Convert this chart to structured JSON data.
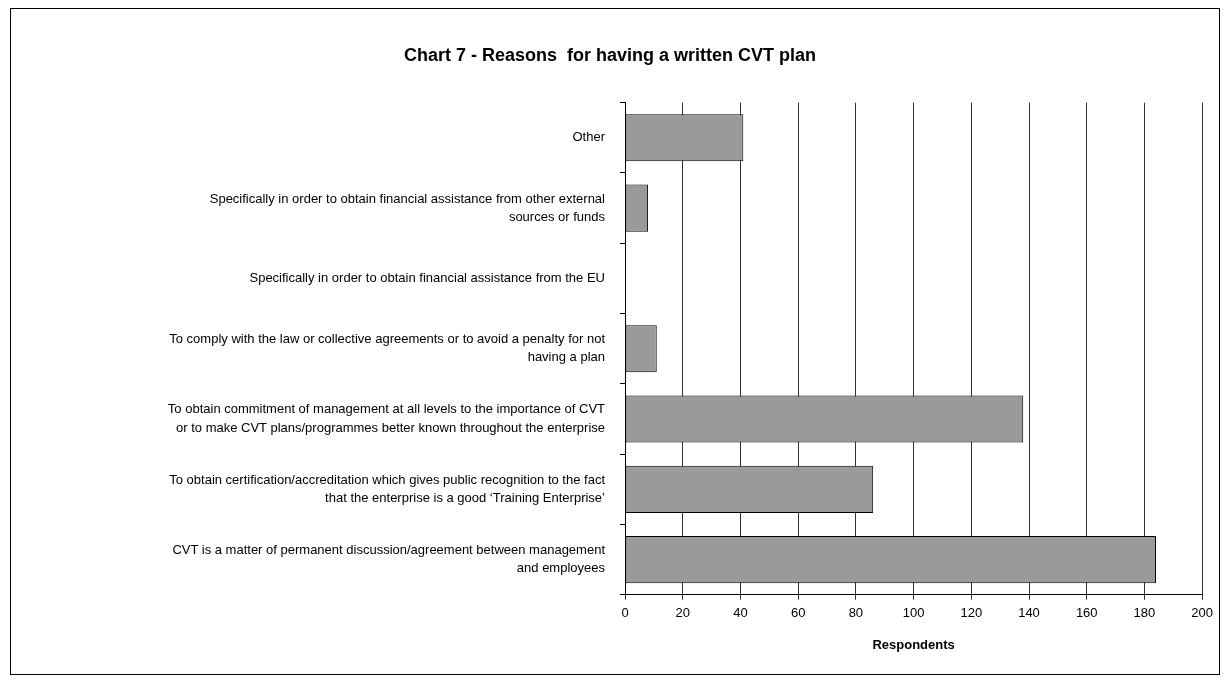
{
  "chart_data": {
    "type": "bar",
    "orientation": "horizontal",
    "title": "Chart 7 - Reasons  for having a written CVT plan",
    "xlabel": "Respondents",
    "categories": [
      "Other",
      "Specifically in order to obtain financial assistance from other external sources or funds",
      "Specifically in order to obtain financial assistance from the EU",
      "To comply with the law or collective agreements or to avoid a penalty for not having a plan",
      "To obtain commitment of management at all levels to the importance of CVT or to make CVT plans/programmes better known throughout the enterprise",
      "To obtain certification/accreditation which gives public recognition to the fact that the enterprise is a good ‘Training Enterprise’",
      "CVT is a matter of permanent discussion/agreement between management and employees"
    ],
    "values": [
      41,
      8,
      0,
      11,
      138,
      86,
      184
    ],
    "color": "#9a9a9a",
    "xlim": [
      0,
      200
    ],
    "xticks": [
      0,
      20,
      40,
      60,
      80,
      100,
      120,
      140,
      160,
      180,
      200
    ],
    "grid": "x"
  }
}
